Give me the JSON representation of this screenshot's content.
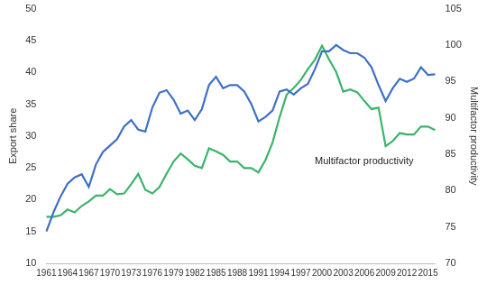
{
  "chart_data": {
    "type": "line",
    "y_label": "Export share",
    "y2_label": "Multifactor productivity",
    "categories": [
      1961,
      null,
      null,
      1964,
      null,
      null,
      1967,
      null,
      null,
      1970,
      null,
      null,
      1973,
      null,
      null,
      1976,
      null,
      null,
      1979,
      null,
      null,
      1982,
      null,
      null,
      1985,
      null,
      null,
      1988,
      null,
      null,
      1991,
      null,
      null,
      1994,
      null,
      null,
      1997,
      null,
      null,
      2000,
      null,
      null,
      2003,
      null,
      null,
      2006,
      null,
      null,
      2009,
      null,
      null,
      2012,
      null,
      null,
      2015,
      null
    ],
    "series": [
      {
        "color": "#3f6fc6",
        "values": [
          15,
          18,
          20.5,
          22.5,
          23.5,
          24,
          22,
          25.5,
          27.5,
          28.5,
          29.5,
          31.5,
          32.5,
          31,
          30.7,
          34.5,
          36.8,
          37.2,
          35.7,
          33.5,
          34,
          32.5,
          34.2,
          38,
          39.3,
          37.5,
          38,
          38,
          37,
          35,
          32.3,
          33,
          34,
          37,
          37.3,
          36.5,
          37.5,
          38.2,
          40.5,
          43.3,
          43.3,
          44.3,
          43.5,
          43,
          43,
          42.3,
          40.8,
          38,
          35.5,
          37.5,
          39,
          38.5,
          39,
          40.8,
          39.6,
          39.7
        ]
      },
      {
        "name": "Multifactor productivity",
        "color": "#3cb36a",
        "axis": "y2",
        "values": [
          76.4,
          76.4,
          76.6,
          77.4,
          77.0,
          77.9,
          78.5,
          79.3,
          79.3,
          80.2,
          79.5,
          79.6,
          80.9,
          82.3,
          80.1,
          79.6,
          80.5,
          82.3,
          84.0,
          85.1,
          84.3,
          83.4,
          83.1,
          85.8,
          85.4,
          84.9,
          84.0,
          84.0,
          83.1,
          83.1,
          82.5,
          84.2,
          86.6,
          90.1,
          93.2,
          94.1,
          95.2,
          96.7,
          98.0,
          99.9,
          98.0,
          96.3,
          93.6,
          93.9,
          93.5,
          92.3,
          91.2,
          91.4,
          86.1,
          86.8,
          87.9,
          87.7,
          87.7,
          88.8,
          88.8,
          88.3
        ]
      }
    ],
    "ylim": [
      10,
      50
    ],
    "yticks": [
      10,
      15,
      20,
      25,
      30,
      35,
      40,
      45,
      50
    ],
    "y2lim": [
      70,
      105
    ],
    "y2ticks": [
      70,
      75,
      80,
      85,
      90,
      95,
      100,
      105
    ],
    "grid": false
  }
}
